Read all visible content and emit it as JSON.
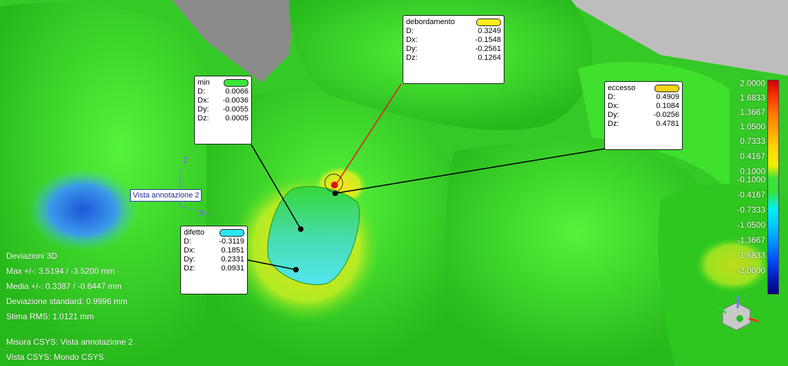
{
  "callouts": {
    "debordamento": {
      "title": "debordamento",
      "swatch_color": "#ffec1a",
      "rows": [
        [
          "D:",
          "0.3249"
        ],
        [
          "Dx:",
          "-0.1548"
        ],
        [
          "Dy:",
          "-0.2561"
        ],
        [
          "Dz:",
          "0.1264"
        ]
      ]
    },
    "min": {
      "title": "min",
      "swatch_color": "#3ce43c",
      "rows": [
        [
          "D:",
          "0.0066"
        ],
        [
          "Dx:",
          "-0.0036"
        ],
        [
          "Dy:",
          "-0.0055"
        ],
        [
          "Dz:",
          "0.0005"
        ]
      ]
    },
    "eccesso": {
      "title": "eccesso",
      "swatch_color": "#ffd21a",
      "rows": [
        [
          "D:",
          "0.4909"
        ],
        [
          "Dx:",
          "0.1084"
        ],
        [
          "Dy:",
          "-0.0256"
        ],
        [
          "Dz:",
          "0.4781"
        ]
      ]
    },
    "difetto": {
      "title": "difetto",
      "swatch_color": "#2ce6f4",
      "rows": [
        [
          "D:",
          "-0.3119"
        ],
        [
          "Dx:",
          "0.1851"
        ],
        [
          "Dy:",
          "0.2331"
        ],
        [
          "Dz:",
          "0.0931"
        ]
      ]
    }
  },
  "view_label": "Vista annotazione 2",
  "axis_labels": {
    "z": "Z",
    "x": "X"
  },
  "stats": {
    "lines": [
      "Deviazioni 3D",
      "Max +/-: 3.5194 / -3.5200 mm",
      "Media +/-: 0.3387 / -0.6447 mm",
      "Deviazione standard: 0.9996 mm",
      "Stima RMS: 1.0121 mm"
    ],
    "csys_lines": [
      "Misura CSYS: Vista annotazione 2",
      "Vista CSYS: Mondo CSYS"
    ]
  },
  "color_scale": {
    "ticks": [
      "2.0000",
      "1.6833",
      "1.3667",
      "1.0500",
      "0.7333",
      "0.4167",
      "0.1000",
      "-0.1000",
      "-0.4167",
      "-0.7333",
      "-1.0500",
      "-1.3667",
      "-1.6833",
      "-2.0000"
    ]
  },
  "colors": {
    "background": "#3fd62a",
    "gray_region": "#8c8c8c",
    "cyan_patch": "#5ee6ea",
    "blue_patch": "#2a78e6"
  }
}
